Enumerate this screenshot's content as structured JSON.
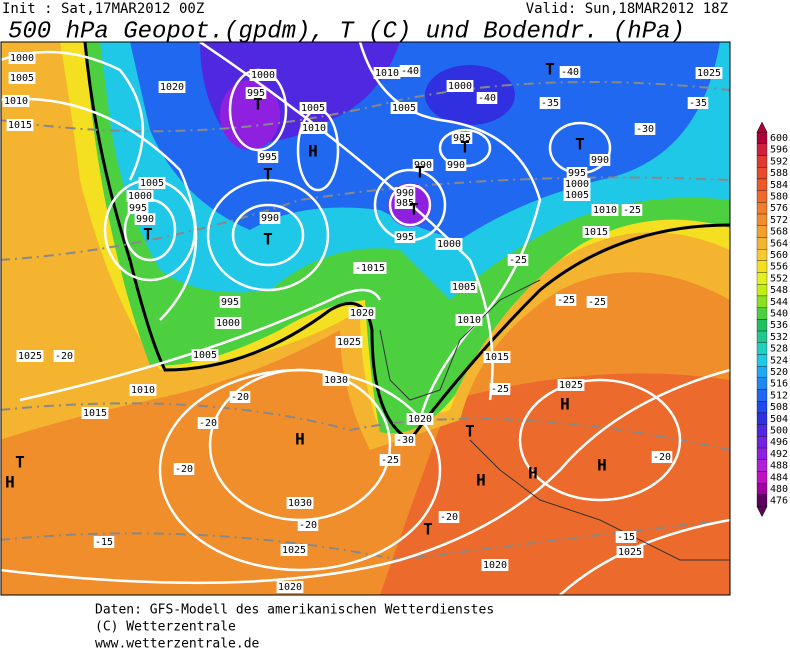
{
  "header": {
    "init": "Init : Sat,17MAR2012 00Z",
    "valid": "Valid: Sun,18MAR2012 18Z",
    "title": "500 hPa Geopot.(gpdm), T (C) und Bodendr. (hPa)"
  },
  "map": {
    "labels": [
      "1000",
      "1005",
      "1010",
      "1015",
      "1020",
      "1000",
      "995",
      "T",
      "1005",
      "1010",
      "H",
      "995",
      "T",
      "1005",
      "1000",
      "995",
      "990",
      "T",
      "990",
      "T",
      "1010",
      "-40",
      "1000",
      "-40",
      "1005",
      "985",
      "T",
      "990",
      "990",
      "T",
      "990",
      "985",
      "T",
      "995",
      "1000",
      "T",
      "-40",
      "1025",
      "-35",
      "-35",
      "-30",
      "T",
      "990",
      "995",
      "1000",
      "1005",
      "1010",
      "-25",
      "1015",
      "-1015",
      "1020",
      "1025",
      "995",
      "1000",
      "1005",
      "1010",
      "1015",
      "1025",
      "-20",
      "1030",
      "H",
      "1030",
      "-20",
      "-20",
      "1025",
      "1020",
      "T",
      "H",
      "-15",
      "1020",
      "-30",
      "T",
      "-25",
      "H",
      "H",
      "1025",
      "H",
      "-20",
      "-15",
      "1025",
      "1020",
      "T",
      "-20",
      "H",
      "-25",
      "1015",
      "1010",
      "1005",
      "-25",
      "-25",
      "-25",
      "-20",
      "-20"
    ]
  },
  "colorbar": {
    "levels": [
      600,
      596,
      592,
      588,
      584,
      580,
      576,
      572,
      568,
      564,
      560,
      556,
      552,
      548,
      544,
      540,
      536,
      532,
      528,
      524,
      520,
      516,
      512,
      508,
      504,
      500,
      496,
      492,
      488,
      484,
      480,
      476
    ],
    "colors": [
      "#b0003a",
      "#d02040",
      "#e03a30",
      "#e84a2c",
      "#ec5a2c",
      "#f06a2c",
      "#f07c2c",
      "#f08e2c",
      "#f2a030",
      "#f4b430",
      "#f6ca30",
      "#f4e020",
      "#e4f020",
      "#c4ee10",
      "#8ce020",
      "#4cd040",
      "#20c060",
      "#20c890",
      "#20d0c0",
      "#20c8e8",
      "#20a8f0",
      "#2088f0",
      "#2068f0",
      "#2048f0",
      "#3030e0",
      "#5028e0",
      "#7024e0",
      "#9020e0",
      "#b020d8",
      "#c010c0",
      "#a000a0",
      "#600060"
    ]
  },
  "footer": {
    "lines": [
      "Daten: GFS-Modell des amerikanischen Wetterdienstes",
      "(C) Wetterzentrale",
      "www.wetterzentrale.de"
    ]
  }
}
